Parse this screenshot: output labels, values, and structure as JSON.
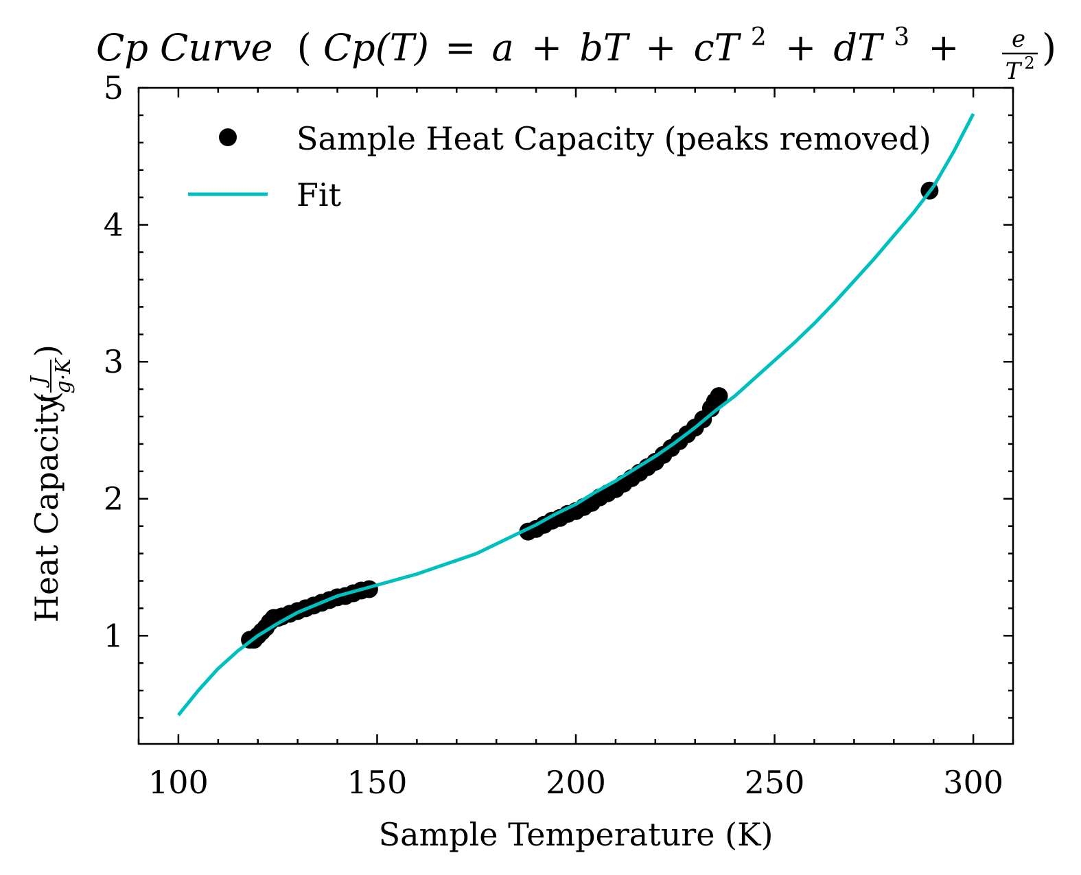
{
  "chart_data": {
    "type": "scatter",
    "title": {
      "cp_label": "Cp Curve",
      "cp_func": "Cp(T)",
      "eq": "=",
      "a": "a",
      "plus": "+",
      "bT": "bT",
      "cT": "cT",
      "dT": "dT",
      "sup2": "2",
      "sup3": "3",
      "frac_num": "e",
      "frac_den": "T",
      "open_paren": "(",
      "close_paren": ")"
    },
    "xlabel": "Sample Temperature (K)",
    "ylabel": {
      "prefix": "Heat Capacity",
      "unit_num": "J",
      "unit_den": "g·K"
    },
    "xlim": [
      90,
      310
    ],
    "ylim": [
      0.21,
      5.0
    ],
    "xticks": [
      100,
      150,
      200,
      250,
      300
    ],
    "yticks": [
      1,
      2,
      3,
      4,
      5
    ],
    "grid": false,
    "legend": {
      "placement": "top-right",
      "entries": [
        {
          "label": "Sample Heat Capacity (peaks removed)",
          "marker": "circle",
          "color": "#000000"
        },
        {
          "label": "Fit",
          "marker": "line",
          "color": "#00bfbf"
        }
      ]
    },
    "series": [
      {
        "name": "Sample Heat Capacity (peaks removed)",
        "kind": "scatter",
        "color": "#000000",
        "points": [
          [
            118,
            0.97
          ],
          [
            119,
            0.97
          ],
          [
            120,
            1.0
          ],
          [
            121,
            1.03
          ],
          [
            122,
            1.06
          ],
          [
            123,
            1.1
          ],
          [
            124,
            1.13
          ],
          [
            125,
            1.13
          ],
          [
            126,
            1.14
          ],
          [
            128,
            1.16
          ],
          [
            130,
            1.18
          ],
          [
            132,
            1.2
          ],
          [
            134,
            1.22
          ],
          [
            136,
            1.24
          ],
          [
            138,
            1.26
          ],
          [
            140,
            1.28
          ],
          [
            142,
            1.29
          ],
          [
            144,
            1.31
          ],
          [
            146,
            1.33
          ],
          [
            148,
            1.34
          ],
          [
            188,
            1.76
          ],
          [
            190,
            1.78
          ],
          [
            192,
            1.81
          ],
          [
            194,
            1.84
          ],
          [
            196,
            1.86
          ],
          [
            198,
            1.89
          ],
          [
            200,
            1.91
          ],
          [
            202,
            1.94
          ],
          [
            204,
            1.97
          ],
          [
            206,
            2.01
          ],
          [
            208,
            2.04
          ],
          [
            210,
            2.07
          ],
          [
            212,
            2.11
          ],
          [
            214,
            2.15
          ],
          [
            216,
            2.19
          ],
          [
            218,
            2.23
          ],
          [
            220,
            2.27
          ],
          [
            222,
            2.32
          ],
          [
            224,
            2.37
          ],
          [
            226,
            2.42
          ],
          [
            228,
            2.47
          ],
          [
            230,
            2.52
          ],
          [
            232,
            2.58
          ],
          [
            234,
            2.66
          ],
          [
            235,
            2.71
          ],
          [
            236,
            2.75
          ],
          [
            289,
            4.25
          ]
        ]
      },
      {
        "name": "Fit",
        "kind": "line",
        "color": "#00bfbf",
        "points": [
          [
            100,
            0.42
          ],
          [
            105,
            0.6
          ],
          [
            110,
            0.76
          ],
          [
            115,
            0.89
          ],
          [
            120,
            1.0
          ],
          [
            125,
            1.09
          ],
          [
            130,
            1.17
          ],
          [
            135,
            1.23
          ],
          [
            140,
            1.29
          ],
          [
            145,
            1.33
          ],
          [
            150,
            1.37
          ],
          [
            155,
            1.41
          ],
          [
            160,
            1.45
          ],
          [
            165,
            1.5
          ],
          [
            170,
            1.55
          ],
          [
            175,
            1.6
          ],
          [
            180,
            1.67
          ],
          [
            185,
            1.74
          ],
          [
            190,
            1.81
          ],
          [
            195,
            1.89
          ],
          [
            200,
            1.96
          ],
          [
            205,
            2.05
          ],
          [
            210,
            2.13
          ],
          [
            215,
            2.22
          ],
          [
            220,
            2.31
          ],
          [
            225,
            2.41
          ],
          [
            230,
            2.52
          ],
          [
            235,
            2.64
          ],
          [
            240,
            2.75
          ],
          [
            245,
            2.88
          ],
          [
            250,
            3.01
          ],
          [
            255,
            3.14
          ],
          [
            260,
            3.28
          ],
          [
            265,
            3.43
          ],
          [
            270,
            3.59
          ],
          [
            275,
            3.75
          ],
          [
            280,
            3.92
          ],
          [
            285,
            4.09
          ],
          [
            290,
            4.28
          ],
          [
            295,
            4.53
          ],
          [
            300,
            4.81
          ]
        ]
      }
    ]
  }
}
